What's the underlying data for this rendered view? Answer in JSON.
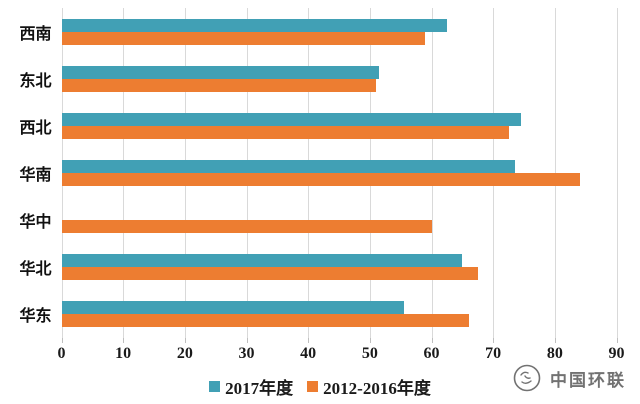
{
  "chart_data": {
    "type": "bar",
    "orientation": "horizontal",
    "title": "",
    "xlabel": "",
    "ylabel": "",
    "xlim": [
      0,
      90
    ],
    "x_ticks": [
      0,
      10,
      20,
      30,
      40,
      50,
      60,
      70,
      80,
      90
    ],
    "grid": "vertical-light-gray",
    "legend_position": "bottom-center",
    "categories": [
      "西南",
      "东北",
      "西北",
      "华南",
      "华中",
      "华北",
      "华东"
    ],
    "series": [
      {
        "name": "2017年度",
        "color": "#41A0B5",
        "values": [
          62.5,
          51.5,
          74.5,
          73.5,
          null,
          65,
          55.5
        ]
      },
      {
        "name": "2012-2016年度",
        "color": "#ED7D31",
        "values": [
          59,
          51,
          72.5,
          84,
          60,
          67.5,
          66
        ]
      }
    ]
  },
  "colors": {
    "series_2017": "#41A0B5",
    "series_2012_2016": "#ED7D31",
    "gridline": "#d9d9d9",
    "text": "#1a1a1a",
    "watermark": "#5a5a5a"
  },
  "watermark": {
    "text": "中国环联",
    "icon": "circle-logo"
  }
}
